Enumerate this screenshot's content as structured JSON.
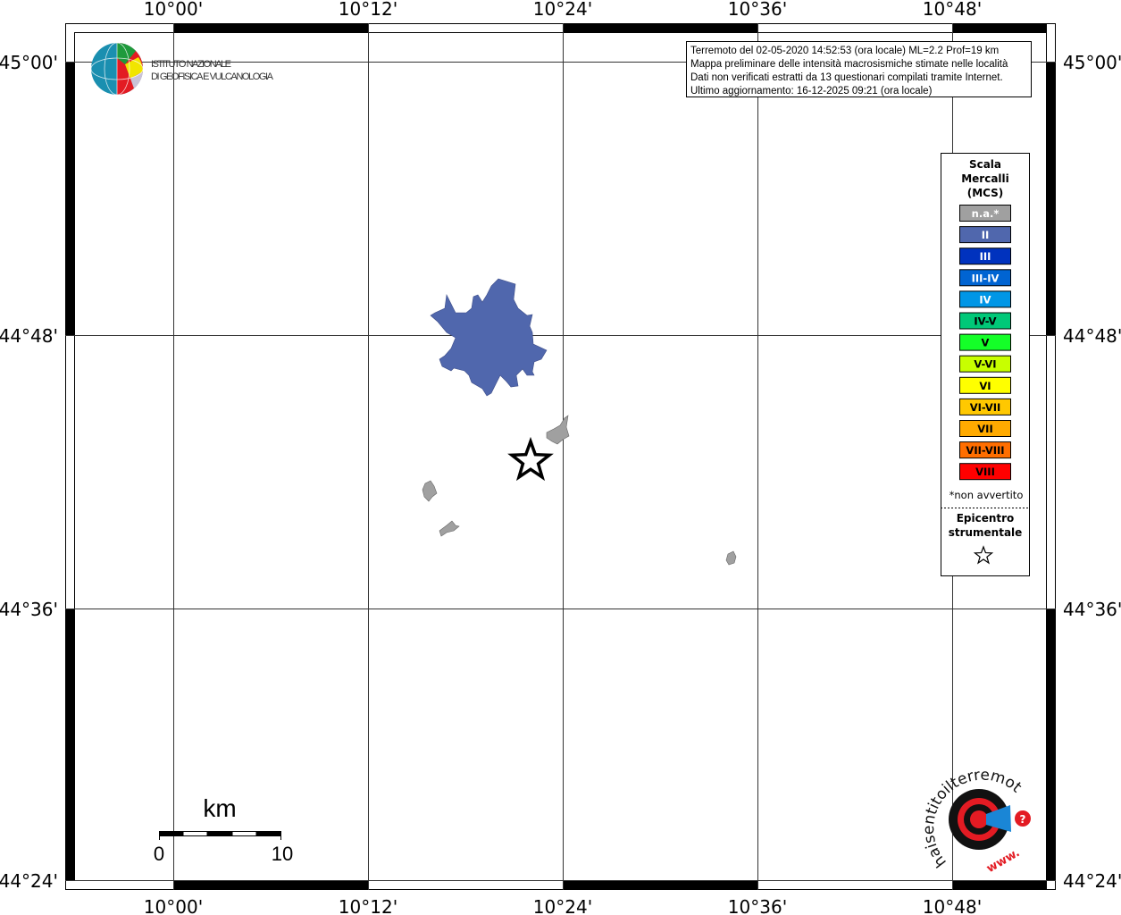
{
  "map": {
    "top_axis_labels": [
      "10°00'",
      "10°12'",
      "10°24'",
      "10°36'",
      "10°48'"
    ],
    "bottom_axis_labels": [
      "10°00'",
      "10°12'",
      "10°24'",
      "10°36'",
      "10°48'"
    ],
    "left_axis_labels": [
      "45°00'",
      "44°48'",
      "44°36'",
      "44°24'"
    ],
    "right_axis_labels": [
      "45°00'",
      "44°48'",
      "44°36'",
      "44°24'"
    ],
    "epicenter_icon": "star-icon",
    "area_colors": {
      "intensity_II": "#5067ad",
      "not_felt": "#a0a0a0"
    }
  },
  "info_box": {
    "lines": [
      "Terremoto del 02-05-2020 14:52:53 (ora locale) ML=2.2 Prof=19 km",
      "Mappa preliminare delle intensità macrosismiche stimate nelle località",
      "Dati non verificati estratti da 13 questionari compilati tramite Internet.",
      "Ultimo aggiornamento: 16-12-2025 09:21 (ora locale)"
    ]
  },
  "ingv_logo": {
    "line1": "ISTITUTO NAZIONALE",
    "line2": "DI GEOFISICA E VULCANOLOGIA"
  },
  "legend": {
    "title": [
      "Scala",
      "Mercalli",
      "(MCS)"
    ],
    "items": [
      {
        "label": "n.a.*",
        "color": "#a0a0a0",
        "text_color": "#ffffff"
      },
      {
        "label": "II",
        "color": "#5067ad",
        "text_color": "#ffffff"
      },
      {
        "label": "III",
        "color": "#0032be",
        "text_color": "#ffffff"
      },
      {
        "label": "III-IV",
        "color": "#0064d2",
        "text_color": "#ffffff"
      },
      {
        "label": "IV",
        "color": "#0096e6",
        "text_color": "#ffffff"
      },
      {
        "label": "IV-V",
        "color": "#00c878",
        "text_color": "#000000"
      },
      {
        "label": "V",
        "color": "#14ff28",
        "text_color": "#000000"
      },
      {
        "label": "V-VI",
        "color": "#c8ff00",
        "text_color": "#000000"
      },
      {
        "label": "VI",
        "color": "#ffff00",
        "text_color": "#000000"
      },
      {
        "label": "VI-VII",
        "color": "#ffc800",
        "text_color": "#000000"
      },
      {
        "label": "VII",
        "color": "#ffaa00",
        "text_color": "#000000"
      },
      {
        "label": "VII-VIII",
        "color": "#ff6e00",
        "text_color": "#000000"
      },
      {
        "label": "VIII",
        "color": "#ff0000",
        "text_color": "#000000"
      }
    ],
    "footnote": "*non avvertito",
    "epicenter_label": [
      "Epicentro",
      "strumentale"
    ]
  },
  "scale_bar": {
    "unit": "km",
    "start": "0",
    "end": "10"
  },
  "hsit_logo": {
    "text": "haisentitoilterremoto.it",
    "prefix": "www."
  }
}
